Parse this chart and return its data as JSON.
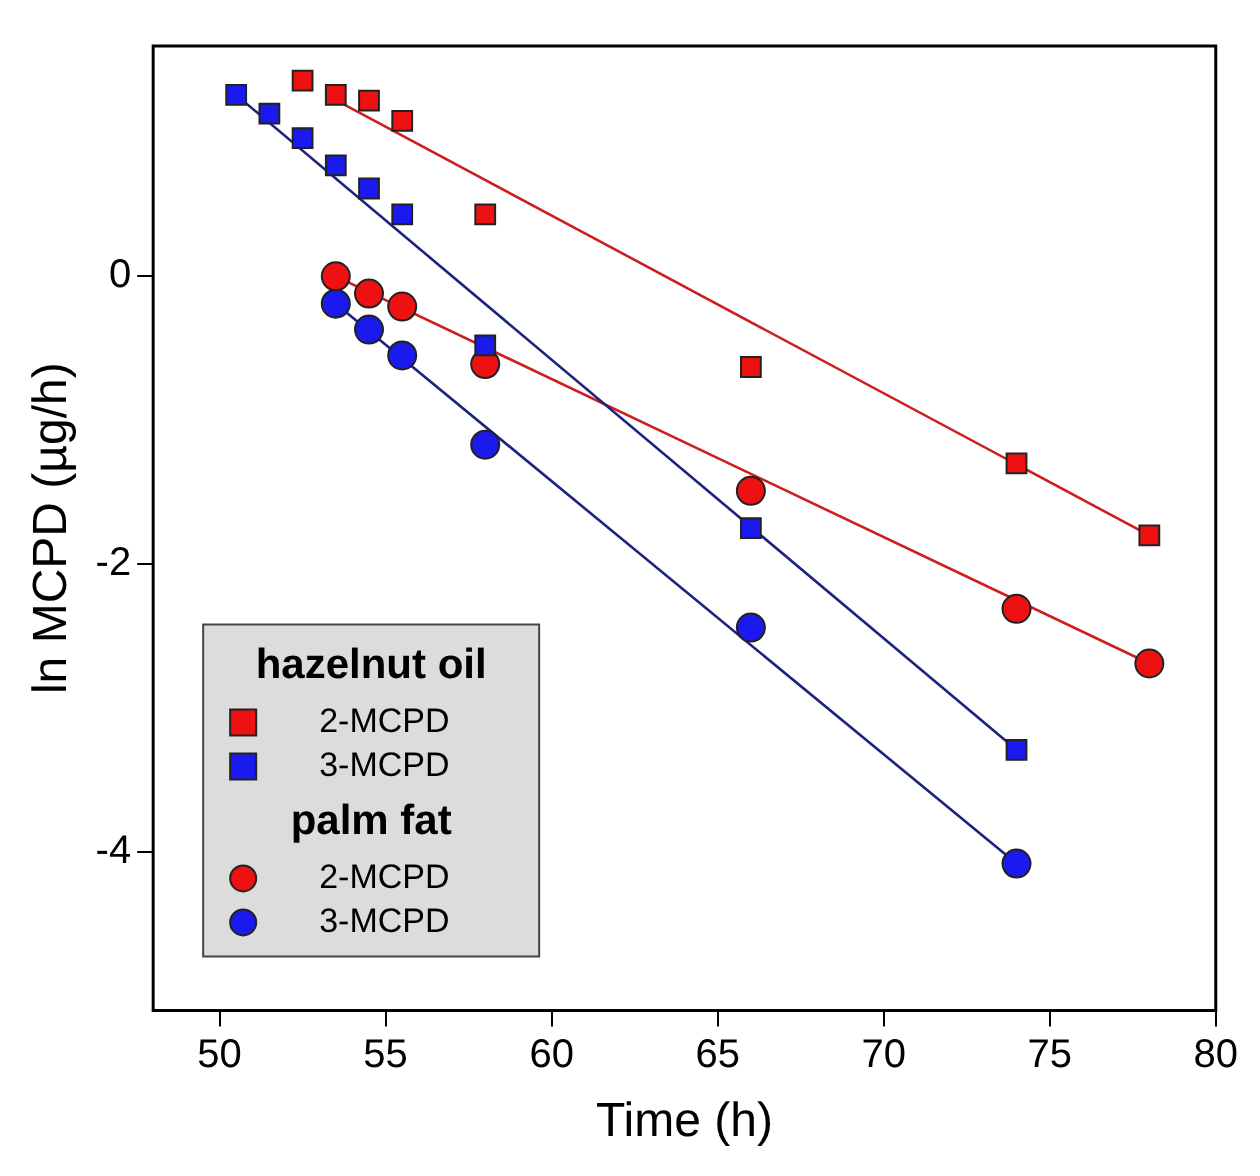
{
  "chart_data": {
    "type": "scatter",
    "xlabel": "Time (h)",
    "ylabel": "ln MCPD (µg/h)",
    "xlim": [
      48,
      80
    ],
    "xticks": [
      50,
      55,
      60,
      65,
      70,
      75,
      80
    ],
    "ylim": [
      -5.1,
      1.6
    ],
    "yticks": [
      0,
      -2,
      -4
    ],
    "grid": false,
    "legend": "bottom left",
    "annotations": [
      "hazelnut oil",
      "palm fat"
    ],
    "series": [
      {
        "name": "2-MCPD",
        "type": "scatter",
        "marker": "square",
        "color": "#ee1111",
        "x": [
          52.5,
          53.5,
          54.5,
          55.5,
          58,
          66,
          74,
          78
        ],
        "values": [
          1.36,
          1.26,
          1.22,
          1.08,
          0.43,
          -0.63,
          -1.3,
          -1.8
        ]
      },
      {
        "name": "3-MCPD",
        "type": "scatter",
        "marker": "square",
        "color": "#1a1aee",
        "x": [
          50.5,
          51.5,
          52.5,
          53.5,
          54.5,
          55.5,
          58,
          66,
          74
        ],
        "values": [
          1.26,
          1.13,
          0.96,
          0.77,
          0.61,
          0.43,
          -0.48,
          -1.75,
          -3.29
        ]
      },
      {
        "name": "2-MCPD",
        "type": "scatter",
        "marker": "circle",
        "color": "#ee1111",
        "x": [
          53.5,
          54.5,
          55.5,
          58,
          66,
          74,
          78
        ],
        "values": [
          0.0,
          -0.12,
          -0.21,
          -0.61,
          -1.49,
          -2.31,
          -2.69
        ]
      },
      {
        "name": "3-MCPD",
        "type": "scatter",
        "marker": "circle",
        "color": "#1a1aee",
        "x": [
          53.5,
          54.5,
          55.5,
          58,
          66,
          74
        ],
        "values": [
          -0.19,
          -0.37,
          -0.55,
          -1.17,
          -2.44,
          -4.08
        ]
      },
      {
        "type": "line",
        "marker": "none",
        "color": "#cc2020",
        "x": [
          53.7,
          78
        ],
        "values": [
          1.2,
          -1.8
        ]
      },
      {
        "type": "line",
        "marker": "none",
        "color": "#1a237e",
        "x": [
          50.5,
          74
        ],
        "values": [
          1.26,
          -3.29
        ]
      },
      {
        "type": "line",
        "marker": "none",
        "color": "#cc2020",
        "x": [
          53.5,
          78
        ],
        "values": [
          0.0,
          -2.69
        ]
      },
      {
        "type": "line",
        "marker": "none",
        "color": "#1a237e",
        "x": [
          53.5,
          74
        ],
        "values": [
          -0.19,
          -4.08
        ]
      }
    ]
  }
}
